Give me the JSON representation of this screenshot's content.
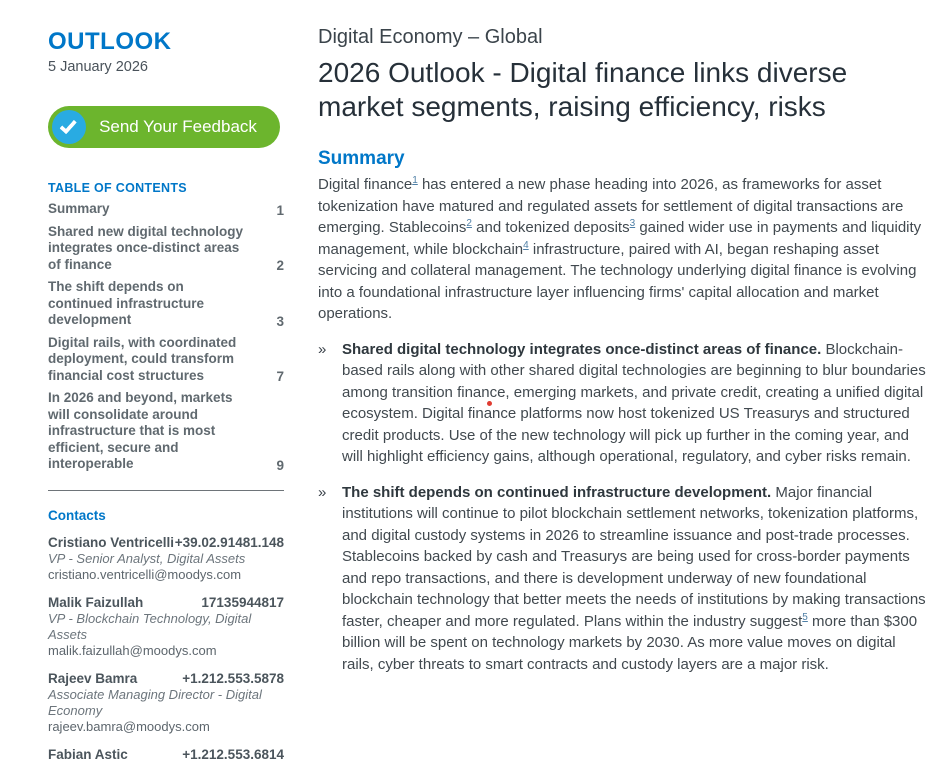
{
  "colors": {
    "accent_blue": "#0077C8",
    "button_green": "#6CB52D",
    "button_circle_blue": "#29ABE2",
    "click_dot_red": "#E03C31"
  },
  "sidebar": {
    "brand": "OUTLOOK",
    "date": "5 January 2026",
    "feedback_button_label": "Send Your Feedback",
    "toc": {
      "title": "TABLE OF CONTENTS",
      "items": [
        {
          "label": "Summary",
          "page": "1"
        },
        {
          "label": "Shared new digital technology integrates once-distinct areas of finance",
          "page": "2"
        },
        {
          "label": "The shift depends on continued infrastructure development",
          "page": "3"
        },
        {
          "label": "Digital rails, with coordinated deployment, could transform financial cost structures",
          "page": "7"
        },
        {
          "label": "In 2026 and beyond, markets will consolidate around infrastructure that is most efficient, secure and interoperable",
          "page": "9"
        }
      ]
    },
    "contacts": {
      "title": "Contacts",
      "people": [
        {
          "name": "Cristiano Ventricelli",
          "phone": "+39.02.91481.148",
          "role": "VP - Senior Analyst, Digital Assets",
          "email": "cristiano.ventricelli@moodys.com"
        },
        {
          "name": "Malik Faizullah",
          "phone": "17135944817",
          "role": "VP - Blockchain Technology, Digital Assets",
          "email": "malik.faizullah@moodys.com"
        },
        {
          "name": "Rajeev Bamra",
          "phone": "+1.212.553.5878",
          "role": "Associate Managing Director - Digital Economy",
          "email": "rajeev.bamra@moodys.com"
        },
        {
          "name": "Fabian Astic",
          "phone": "+1.212.553.6814",
          "role": "",
          "email": ""
        }
      ]
    }
  },
  "main": {
    "eyebrow": "Digital Economy – Global",
    "title": "2026 Outlook - Digital finance links diverse market segments, raising efficiency, risks",
    "summary_heading": "Summary",
    "summary_segments": [
      {
        "t": "Digital finance"
      },
      {
        "sup": "1"
      },
      {
        "t": " has entered a new phase heading into 2026, as frameworks for asset tokenization have matured and regulated assets for settlement of digital transactions are emerging. Stablecoins"
      },
      {
        "sup": "2"
      },
      {
        "t": " and tokenized deposits"
      },
      {
        "sup": "3"
      },
      {
        "t": " gained wider use in payments and liquidity management, while blockchain"
      },
      {
        "sup": "4"
      },
      {
        "t": " infrastructure, paired with AI, began reshaping asset servicing and collateral management. The technology underlying digital finance is evolving into a foundational infrastructure layer influencing firms' capital allocation and market operations."
      }
    ],
    "bullet_marker": "»",
    "bullets": [
      {
        "segments": [
          {
            "b": "Shared digital technology integrates once-distinct areas of finance."
          },
          {
            "t": " Blockchain-based rails along with other shared digital technologies are beginning to blur boundaries among transition finance, emerging markets, and private credit, creating a unified digital ecosystem. Digital finance platforms now host tokenized US Treasurys and structured credit products. Use of the new technology will pick up further in the coming year, and will highlight efficiency gains, although operational, regulatory, and cyber risks remain."
          }
        ]
      },
      {
        "segments": [
          {
            "b": "The shift depends on continued infrastructure development."
          },
          {
            "t": " Major financial institutions will continue to pilot blockchain settlement networks, tokenization platforms, and digital custody systems in 2026 to streamline issuance and post-trade processes. Stablecoins backed by cash and Treasurys are being used for cross-border payments and repo transactions, and there is development underway of new foundational blockchain technology that better meets the needs of institutions by making transactions faster, cheaper and more regulated. Plans within the industry suggest"
          },
          {
            "sup": "5"
          },
          {
            "t": " more than $300 billion will be spent on technology markets by 2030. As more value moves on digital rails, cyber threats to smart contracts and custody layers are a major risk."
          }
        ]
      }
    ]
  }
}
